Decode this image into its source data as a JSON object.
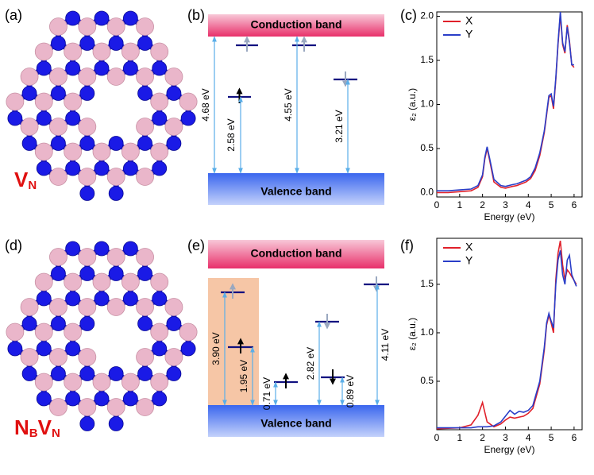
{
  "panels": [
    "(a)",
    "(b)",
    "(c)",
    "(d)",
    "(e)",
    "(f)"
  ],
  "molecules": [
    {
      "label": [
        "V",
        "N"
      ]
    },
    {
      "label": [
        "N",
        "B",
        "V",
        "N"
      ]
    }
  ],
  "band_diagrams": [
    {
      "conduction": "Conduction band",
      "valence": "Valence band",
      "transitions": [
        "4.68 eV",
        "2.58 eV",
        "4.55 eV",
        "3.21 eV"
      ]
    },
    {
      "conduction": "Conduction band",
      "valence": "Valence band",
      "transitions": [
        "3.90 eV",
        "1.95 eV",
        "0.71 eV",
        "2.82 eV",
        "0.89 eV",
        "4.11 eV"
      ]
    }
  ],
  "chart_data": [
    {
      "type": "line",
      "xlabel": "Energy (eV)",
      "ylabel": "ε₂ (a.u.)",
      "xlim": [
        0,
        6.35
      ],
      "xticks": [
        0,
        1,
        2,
        3,
        4,
        5,
        6
      ],
      "ylim": [
        -0.05,
        2.05
      ],
      "yticks": [
        {
          "value": 0,
          "label": "0.0"
        },
        0.5,
        {
          "value": 1,
          "label": "1.0"
        },
        1.5,
        {
          "value": 2,
          "label": "2.0"
        }
      ],
      "legend": "upper left",
      "x": [
        0,
        0.5,
        1,
        1.5,
        1.8,
        2.0,
        2.1,
        2.2,
        2.3,
        2.5,
        2.8,
        3,
        3.3,
        3.5,
        3.7,
        3.9,
        4.1,
        4.3,
        4.5,
        4.7,
        4.8,
        4.9,
        5.0,
        5.1,
        5.2,
        5.3,
        5.4,
        5.5,
        5.6,
        5.7,
        5.8,
        5.9,
        6.0
      ],
      "series": [
        {
          "name": "X",
          "color": "#e0202a",
          "values": [
            0.0,
            0.0,
            0.01,
            0.02,
            0.06,
            0.18,
            0.38,
            0.5,
            0.38,
            0.12,
            0.06,
            0.05,
            0.07,
            0.08,
            0.1,
            0.12,
            0.16,
            0.25,
            0.42,
            0.68,
            0.88,
            1.08,
            1.1,
            0.95,
            1.28,
            1.68,
            2.02,
            1.68,
            1.58,
            1.9,
            1.72,
            1.45,
            1.42
          ]
        },
        {
          "name": "Y",
          "color": "#2a3ec8",
          "values": [
            0.02,
            0.02,
            0.03,
            0.04,
            0.08,
            0.2,
            0.4,
            0.52,
            0.4,
            0.15,
            0.08,
            0.07,
            0.09,
            0.1,
            0.12,
            0.14,
            0.18,
            0.28,
            0.45,
            0.7,
            0.9,
            1.1,
            1.12,
            0.98,
            1.3,
            1.7,
            2.05,
            1.7,
            1.6,
            1.88,
            1.7,
            1.45,
            1.45
          ]
        }
      ]
    },
    {
      "type": "line",
      "xlabel": "Energy (eV)",
      "ylabel": "ε₂ (a.u.)",
      "xlim": [
        0,
        6.35
      ],
      "xticks": [
        0,
        1,
        2,
        3,
        4,
        5,
        6
      ],
      "ylim": [
        0,
        1.975
      ],
      "yticks": [
        0.5,
        {
          "value": 1,
          "label": "1.0"
        },
        1.5
      ],
      "legend": "upper left",
      "x": [
        0,
        1,
        1.5,
        1.8,
        2.0,
        2.2,
        2.5,
        2.8,
        3.0,
        3.2,
        3.4,
        3.6,
        3.8,
        4.0,
        4.2,
        4.5,
        4.7,
        4.8,
        4.9,
        5.0,
        5.1,
        5.2,
        5.3,
        5.4,
        5.5,
        5.6,
        5.7,
        5.8,
        5.9,
        6.1
      ],
      "series": [
        {
          "name": "X",
          "color": "#e0202a",
          "values": [
            0.01,
            0.02,
            0.05,
            0.15,
            0.28,
            0.08,
            0.03,
            0.06,
            0.1,
            0.13,
            0.12,
            0.13,
            0.14,
            0.17,
            0.22,
            0.47,
            0.82,
            1.08,
            1.18,
            1.1,
            1.0,
            1.55,
            1.82,
            1.95,
            1.7,
            1.55,
            1.65,
            1.62,
            1.58,
            1.5
          ]
        },
        {
          "name": "Y",
          "color": "#2a3ec8",
          "values": [
            0.02,
            0.02,
            0.02,
            0.03,
            0.03,
            0.03,
            0.04,
            0.08,
            0.14,
            0.2,
            0.16,
            0.19,
            0.18,
            0.2,
            0.25,
            0.5,
            0.85,
            1.1,
            1.2,
            1.12,
            1.05,
            1.5,
            1.75,
            1.85,
            1.6,
            1.5,
            1.75,
            1.8,
            1.6,
            1.48
          ]
        }
      ]
    }
  ]
}
